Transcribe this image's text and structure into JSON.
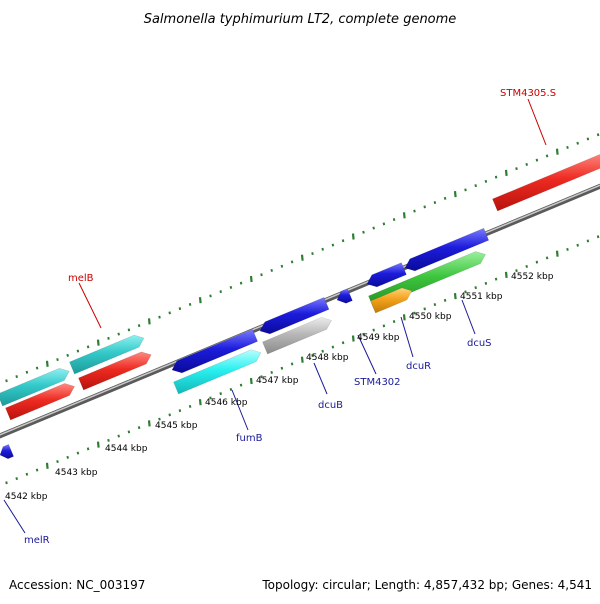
{
  "title": "Salmonella typhimurium LT2, complete genome",
  "footer": {
    "accession": "Accession: NC_003197",
    "topology": "Topology: circular; Length: 4,857,432 bp; Genes: 4,541"
  },
  "colors": {
    "background": "#ffffff",
    "backbone": "#888888",
    "tick": "#2e7d32",
    "label_red": "#cc0000",
    "label_blue": "#1a1a99",
    "red": "#e8251f",
    "teal": "#2ebfbf",
    "blue": "#1a1ad6",
    "cyan": "#27eaea",
    "gray": "#b5b5b5",
    "green": "#3cbf3c",
    "orange": "#f0a020"
  },
  "kbp_labels": [
    "4542 kbp",
    "4543 kbp",
    "4544 kbp",
    "4545 kbp",
    "4546 kbp",
    "4547 kbp",
    "4548 kbp",
    "4549 kbp",
    "4550 kbp",
    "4551 kbp",
    "4552 kbp"
  ],
  "gene_labels": [
    "STM4305.S",
    "melB",
    "melR",
    "fumB",
    "dcuB",
    "STM4302",
    "dcuR",
    "dcuS"
  ],
  "features": [
    {
      "color": "red",
      "strand": "forward"
    },
    {
      "color": "red",
      "strand": "forward"
    },
    {
      "color": "red",
      "strand": "forward"
    },
    {
      "color": "teal",
      "strand": "forward"
    },
    {
      "color": "teal",
      "strand": "forward"
    },
    {
      "color": "blue",
      "strand": "reverse"
    },
    {
      "color": "blue",
      "strand": "reverse"
    },
    {
      "color": "blue",
      "strand": "reverse"
    },
    {
      "color": "blue",
      "strand": "reverse"
    },
    {
      "color": "blue",
      "strand": "reverse"
    },
    {
      "color": "blue",
      "strand": "reverse"
    },
    {
      "color": "cyan",
      "strand": "reverse"
    },
    {
      "color": "gray",
      "strand": "reverse"
    },
    {
      "color": "green",
      "strand": "reverse"
    },
    {
      "color": "orange",
      "strand": "reverse"
    }
  ]
}
